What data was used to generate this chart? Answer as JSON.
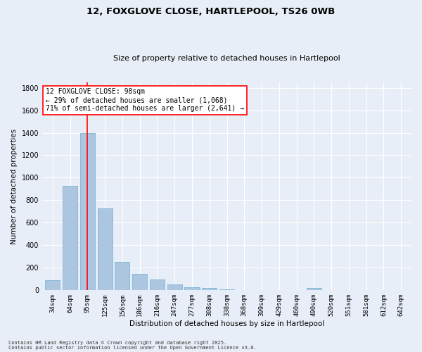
{
  "title1": "12, FOXGLOVE CLOSE, HARTLEPOOL, TS26 0WB",
  "title2": "Size of property relative to detached houses in Hartlepool",
  "xlabel": "Distribution of detached houses by size in Hartlepool",
  "ylabel": "Number of detached properties",
  "categories": [
    "34sqm",
    "64sqm",
    "95sqm",
    "125sqm",
    "156sqm",
    "186sqm",
    "216sqm",
    "247sqm",
    "277sqm",
    "308sqm",
    "338sqm",
    "368sqm",
    "399sqm",
    "429sqm",
    "460sqm",
    "490sqm",
    "520sqm",
    "551sqm",
    "581sqm",
    "612sqm",
    "642sqm"
  ],
  "values": [
    90,
    930,
    1400,
    730,
    250,
    145,
    93,
    52,
    25,
    20,
    10,
    5,
    3,
    0,
    0,
    18,
    0,
    0,
    0,
    0,
    0
  ],
  "bar_color": "#adc6e0",
  "bar_edge_color": "#6aaed6",
  "vline_x": 2,
  "vline_color": "red",
  "annotation_text": "12 FOXGLOVE CLOSE: 98sqm\n← 29% of detached houses are smaller (1,068)\n71% of semi-detached houses are larger (2,641) →",
  "annotation_box_color": "white",
  "annotation_box_edge_color": "red",
  "ylim": [
    0,
    1850
  ],
  "yticks": [
    0,
    200,
    400,
    600,
    800,
    1000,
    1200,
    1400,
    1600,
    1800
  ],
  "footer1": "Contains HM Land Registry data © Crown copyright and database right 2025.",
  "footer2": "Contains public sector information licensed under the Open Government Licence v3.0.",
  "bg_color": "#e8eef7",
  "grid_color": "white"
}
